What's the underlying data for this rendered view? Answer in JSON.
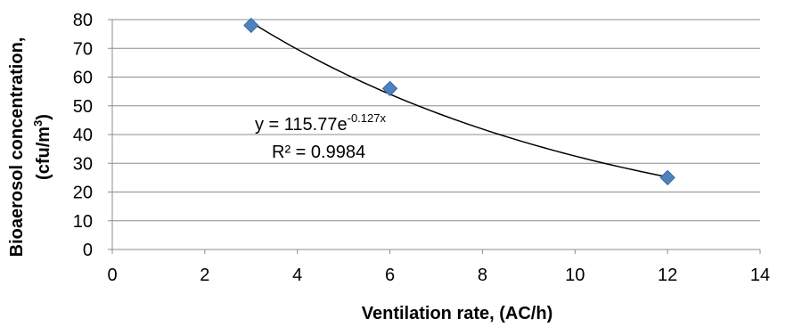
{
  "chart_data": {
    "type": "scatter",
    "xlabel": "Ventilation rate, (AC/h)",
    "ylabel_line1": "Bioaerosol concentration,",
    "ylabel_line2": "(cfu/m",
    "ylabel_sup": "3",
    "ylabel_close": ")",
    "xlim": [
      0,
      14
    ],
    "ylim": [
      0,
      80
    ],
    "x_ticks": [
      0,
      2,
      4,
      6,
      8,
      10,
      12,
      14
    ],
    "y_ticks": [
      0,
      10,
      20,
      30,
      40,
      50,
      60,
      70,
      80
    ],
    "grid": "horizontal",
    "series": [
      {
        "x": [
          3,
          6,
          12
        ],
        "y": [
          78,
          56,
          25
        ],
        "marker": "diamond",
        "color": "#4f81bd"
      }
    ],
    "trendline": {
      "type": "exponential",
      "a": 115.77,
      "b": -0.127,
      "x_range": [
        3,
        12
      ],
      "color": "#000000",
      "equation_prefix": "y = 115.77e",
      "equation_exponent": "-0.127x",
      "r_squared": "R² = 0.9984"
    }
  }
}
